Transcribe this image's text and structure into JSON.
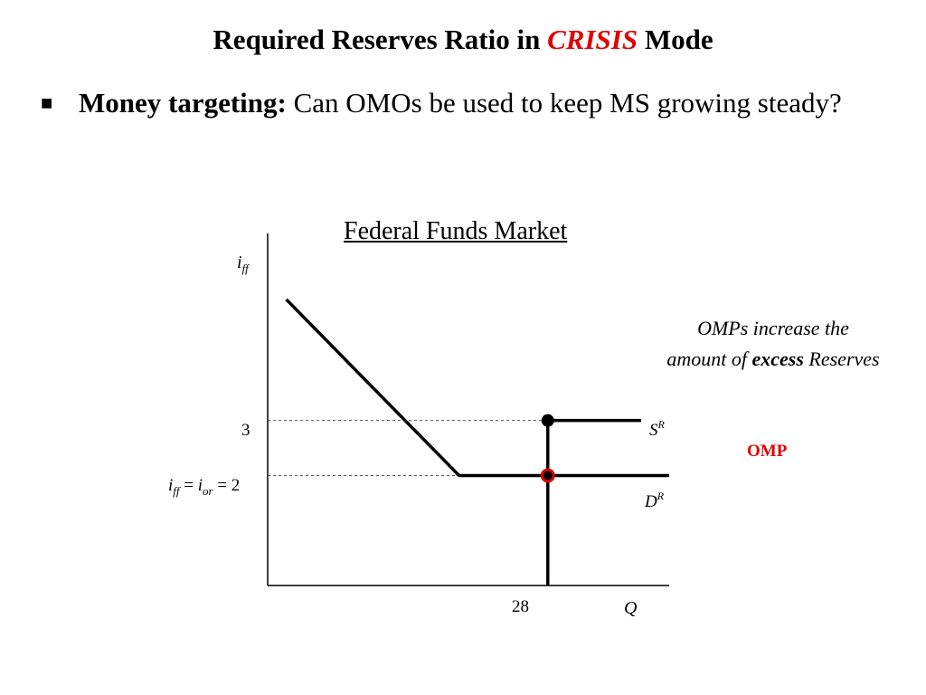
{
  "slide": {
    "title_before": "Required Reserves Ratio in ",
    "title_emph": "CRISIS",
    "title_after": " Mode",
    "bullet_lead": "Money targeting:",
    "bullet_rest": " Can OMOs be used to keep MS growing steady?"
  },
  "colors": {
    "emphasis": "#e00000",
    "line": "#000000",
    "guide": "#555555"
  },
  "chart_data": {
    "type": "line",
    "title": "Federal Funds Market",
    "ylabel_main": "i",
    "ylabel_sub": "ff",
    "xlabel": "Q",
    "x_ticks": [
      "28"
    ],
    "y_tick_3": "3",
    "y_tick_2_parts": {
      "a": "i",
      "a_sub": "ff",
      "eq1": " = ",
      "b": "i",
      "b_sub": "or",
      "eq2": " = 2"
    },
    "ylim": [
      0,
      6.4
    ],
    "xlim": [
      0,
      43
    ],
    "series": [
      {
        "name": "D",
        "label_main": "D",
        "label_sup": "R",
        "points": [
          [
            2,
            5.2
          ],
          [
            20.5,
            2
          ],
          [
            43,
            2
          ]
        ]
      },
      {
        "name": "S",
        "label_main": "S",
        "label_sup": "R",
        "points": [
          [
            30,
            0
          ],
          [
            30,
            3
          ],
          [
            40,
            3
          ]
        ]
      }
    ],
    "guides": [
      {
        "y": 3,
        "x_from": 0,
        "x_to": 30
      },
      {
        "y": 2,
        "x_from": 0,
        "x_to": 20.5
      }
    ],
    "markers": [
      {
        "x": 30,
        "y": 3,
        "style": "filled-black"
      },
      {
        "x": 30,
        "y": 2,
        "style": "red-ring"
      }
    ],
    "annotation": {
      "line1": "OMPs increase the",
      "line2_before": "amount of ",
      "line2_bold": "excess",
      "line2_after": " Reserves"
    },
    "omp_label": "OMP"
  }
}
